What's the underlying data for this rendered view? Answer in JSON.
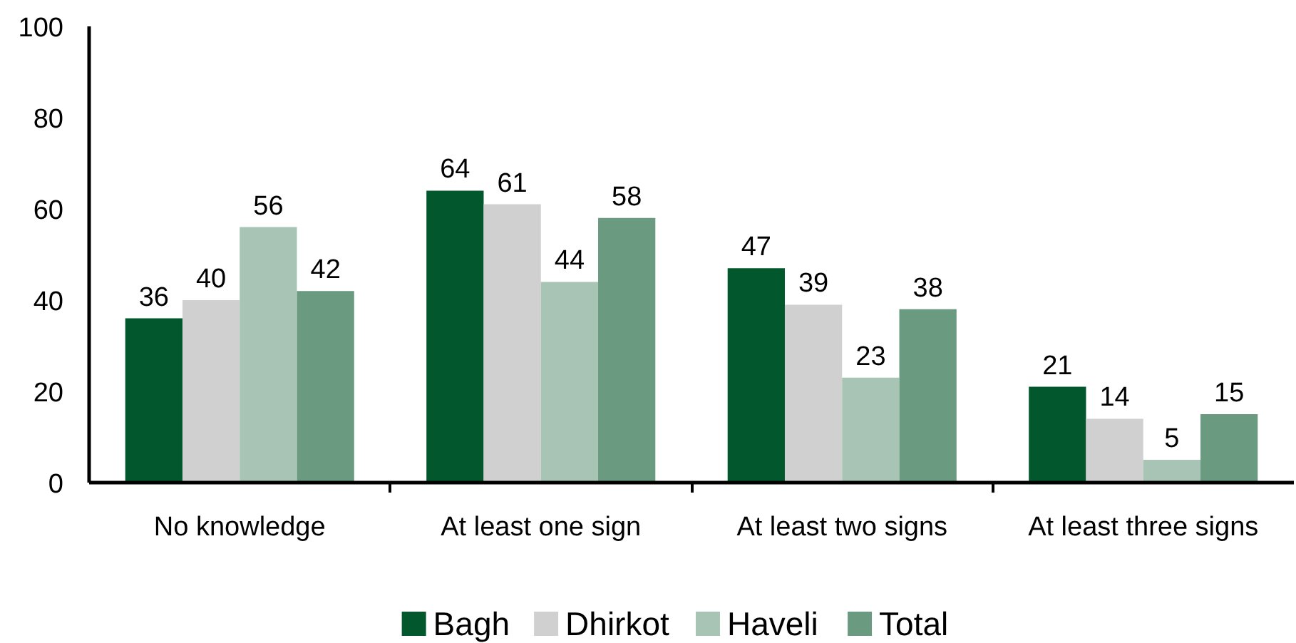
{
  "chart_data": {
    "type": "bar",
    "categories": [
      "No knowledge",
      "At least one sign",
      "At least two signs",
      "At least three signs"
    ],
    "series": [
      {
        "name": "Bagh",
        "color": "#02582c",
        "values": [
          36,
          64,
          47,
          21
        ]
      },
      {
        "name": "Dhirkot",
        "color": "#d0d0d0",
        "values": [
          40,
          61,
          39,
          14
        ]
      },
      {
        "name": "Haveli",
        "color": "#a8c4b4",
        "values": [
          56,
          44,
          23,
          5
        ]
      },
      {
        "name": "Total",
        "color": "#6a9a80",
        "values": [
          42,
          58,
          38,
          15
        ]
      }
    ],
    "ylim": [
      0,
      100
    ],
    "yticks": [
      0,
      20,
      40,
      60,
      80,
      100
    ],
    "data_labels": true,
    "legend": "bottom",
    "grid": false
  }
}
